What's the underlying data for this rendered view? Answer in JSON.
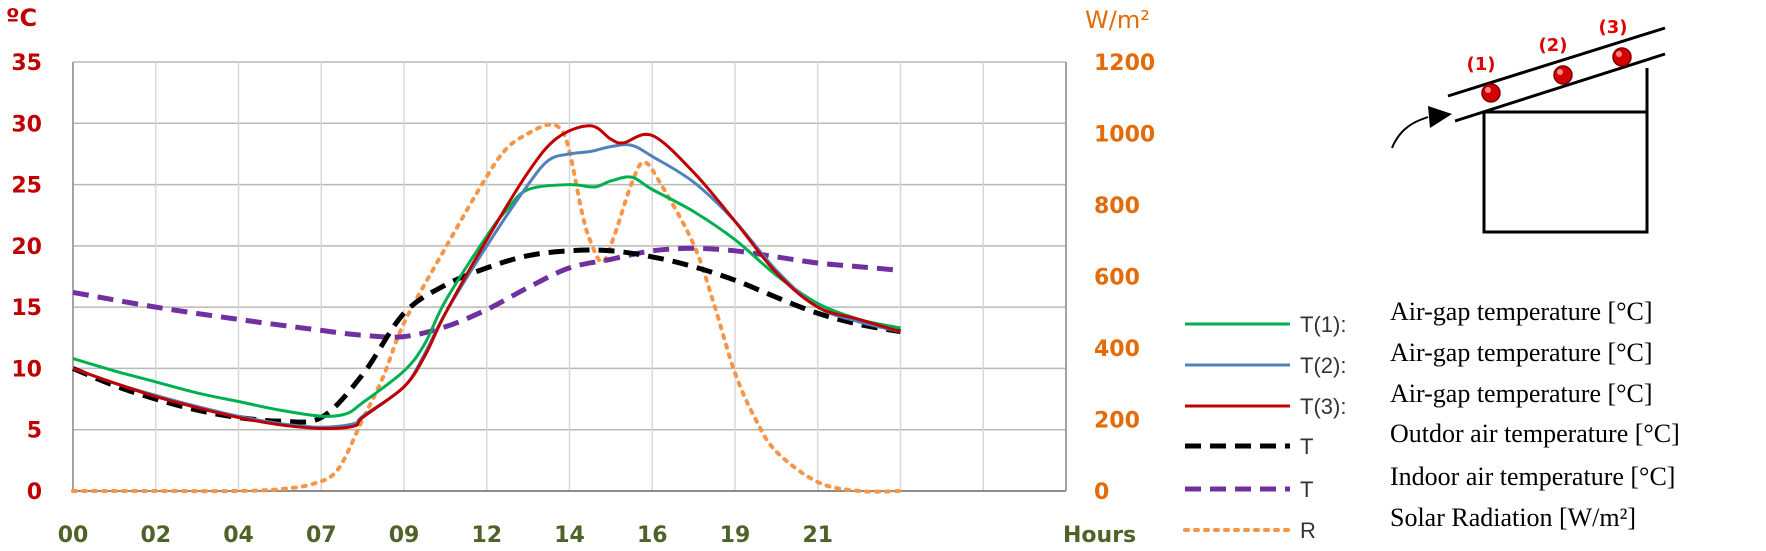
{
  "chart_data": {
    "type": "line",
    "y_left": {
      "unit_label": "ºC",
      "range": [
        0,
        35
      ],
      "ticks": [
        "0",
        "5",
        "10",
        "15",
        "20",
        "25",
        "30",
        "35"
      ],
      "color": "#c00000"
    },
    "y_right": {
      "unit_label": "W/m²",
      "range": [
        0,
        1200
      ],
      "ticks": [
        "0",
        "200",
        "400",
        "600",
        "800",
        "1000",
        "1200"
      ],
      "color": "#e36c09"
    },
    "x_axis": {
      "unit_label": "Hours",
      "range": [
        0,
        24
      ],
      "ticks": [
        {
          "label": "00",
          "value": 0
        },
        {
          "label": "02",
          "value": 2
        },
        {
          "label": "04",
          "value": 4
        },
        {
          "label": "07",
          "value": 6
        },
        {
          "label": "09",
          "value": 8
        },
        {
          "label": "12",
          "value": 10
        },
        {
          "label": "14",
          "value": 12
        },
        {
          "label": "16",
          "value": 14
        },
        {
          "label": "19",
          "value": 16
        },
        {
          "label": "21",
          "value": 18
        },
        {
          "label": "",
          "value": 20
        },
        {
          "label": "",
          "value": 22
        },
        {
          "label": "",
          "value": 24
        }
      ],
      "color": "#4f6228"
    },
    "grid": true,
    "legend_position": "bottom-right",
    "series": [
      {
        "symbol": "T(1):",
        "name": "Air-gap temperature [°C]",
        "axis": "left",
        "color": "#00b050",
        "dash": "solid",
        "points": [
          [
            0,
            10.8
          ],
          [
            1,
            9.8
          ],
          [
            2,
            8.9
          ],
          [
            3,
            8.0
          ],
          [
            4,
            7.3
          ],
          [
            5,
            6.6
          ],
          [
            6,
            6.1
          ],
          [
            6.6,
            6.3
          ],
          [
            7,
            7.2
          ],
          [
            8,
            9.8
          ],
          [
            8.5,
            12
          ],
          [
            9,
            15.5
          ],
          [
            10,
            20.8
          ],
          [
            10.5,
            23
          ],
          [
            11,
            24.6
          ],
          [
            12,
            25
          ],
          [
            12.6,
            24.8
          ],
          [
            13,
            25.3
          ],
          [
            13.5,
            25.6
          ],
          [
            14,
            24.6
          ],
          [
            15,
            22.8
          ],
          [
            16,
            20.5
          ],
          [
            17,
            17.6
          ],
          [
            18,
            15.3
          ],
          [
            19,
            14
          ],
          [
            20,
            13.3
          ]
        ]
      },
      {
        "symbol": "T(2):",
        "name": "Air-gap temperature [°C]",
        "axis": "left",
        "color": "#4f81bd",
        "dash": "solid",
        "points": [
          [
            0,
            10
          ],
          [
            1,
            8.8
          ],
          [
            2,
            7.8
          ],
          [
            3,
            6.9
          ],
          [
            4,
            6.1
          ],
          [
            5,
            5.5
          ],
          [
            6,
            5.2
          ],
          [
            6.8,
            5.5
          ],
          [
            7,
            6.1
          ],
          [
            8,
            8.5
          ],
          [
            8.5,
            11.2
          ],
          [
            9,
            14.5
          ],
          [
            10,
            20
          ],
          [
            11,
            25
          ],
          [
            11.5,
            27
          ],
          [
            12,
            27.5
          ],
          [
            12.5,
            27.7
          ],
          [
            13,
            28.1
          ],
          [
            13.5,
            28.2
          ],
          [
            14,
            27.3
          ],
          [
            15,
            25.2
          ],
          [
            16,
            22
          ],
          [
            17,
            18
          ],
          [
            18,
            15
          ],
          [
            19,
            13.8
          ],
          [
            20,
            13
          ]
        ]
      },
      {
        "symbol": "T(3):",
        "name": "Air-gap temperature [°C]",
        "axis": "left",
        "color": "#c00000",
        "dash": "solid",
        "points": [
          [
            0,
            10
          ],
          [
            1,
            8.8
          ],
          [
            2,
            7.7
          ],
          [
            3,
            6.8
          ],
          [
            4,
            6
          ],
          [
            5,
            5.4
          ],
          [
            6,
            5.1
          ],
          [
            6.8,
            5.3
          ],
          [
            7,
            6
          ],
          [
            8,
            8.5
          ],
          [
            8.5,
            11
          ],
          [
            9,
            14.5
          ],
          [
            10,
            20.5
          ],
          [
            11,
            26
          ],
          [
            11.7,
            28.8
          ],
          [
            12.5,
            29.8
          ],
          [
            13,
            28.7
          ],
          [
            13.3,
            28.4
          ],
          [
            14,
            29
          ],
          [
            15,
            26
          ],
          [
            16,
            22
          ],
          [
            17,
            17.8
          ],
          [
            18,
            15
          ],
          [
            19,
            14
          ],
          [
            20,
            13
          ]
        ]
      },
      {
        "symbol": "T",
        "name": "Outdor air temperature [°C]",
        "axis": "left",
        "color": "#000000",
        "dash": "dashed",
        "points": [
          [
            0,
            10
          ],
          [
            1,
            8.6
          ],
          [
            2,
            7.5
          ],
          [
            3,
            6.6
          ],
          [
            4,
            6
          ],
          [
            5,
            5.7
          ],
          [
            6,
            6
          ],
          [
            7,
            9.5
          ],
          [
            8,
            14.5
          ],
          [
            9,
            16.8
          ],
          [
            10,
            18.2
          ],
          [
            11,
            19.2
          ],
          [
            12,
            19.6
          ],
          [
            13,
            19.6
          ],
          [
            14,
            19.1
          ],
          [
            15,
            18.3
          ],
          [
            16,
            17.2
          ],
          [
            17,
            15.8
          ],
          [
            18,
            14.5
          ],
          [
            19,
            13.6
          ],
          [
            20,
            13
          ]
        ]
      },
      {
        "symbol": "T",
        "name": "Indoor air temperature [°C]",
        "axis": "left",
        "color": "#7030a0",
        "dash": "dashed",
        "points": [
          [
            0,
            16.2
          ],
          [
            2,
            15
          ],
          [
            4,
            14
          ],
          [
            6,
            13.1
          ],
          [
            7,
            12.7
          ],
          [
            8,
            12.6
          ],
          [
            9,
            13.4
          ],
          [
            10,
            14.8
          ],
          [
            11,
            16.6
          ],
          [
            12,
            18.2
          ],
          [
            13,
            18.9
          ],
          [
            14,
            19.6
          ],
          [
            15,
            19.8
          ],
          [
            16,
            19.6
          ],
          [
            17,
            19.1
          ],
          [
            18,
            18.6
          ],
          [
            19,
            18.3
          ],
          [
            20,
            18
          ]
        ]
      },
      {
        "symbol": "R",
        "name": "Solar Radiation [W/m²]",
        "axis": "right",
        "color": "#f79646",
        "dash": "dotted",
        "points": [
          [
            0,
            0
          ],
          [
            2,
            0
          ],
          [
            4,
            0
          ],
          [
            5,
            5
          ],
          [
            5.8,
            20
          ],
          [
            6.4,
            60
          ],
          [
            7,
            200
          ],
          [
            7.5,
            320
          ],
          [
            8,
            470
          ],
          [
            9,
            680
          ],
          [
            10,
            880
          ],
          [
            10.5,
            960
          ],
          [
            11,
            1000
          ],
          [
            11.5,
            1025
          ],
          [
            11.8,
            1010
          ],
          [
            12,
            950
          ],
          [
            12.3,
            780
          ],
          [
            12.5,
            700
          ],
          [
            12.8,
            640
          ],
          [
            13.1,
            720
          ],
          [
            13.5,
            860
          ],
          [
            13.8,
            920
          ],
          [
            14.2,
            860
          ],
          [
            15,
            690
          ],
          [
            15.5,
            520
          ],
          [
            16,
            330
          ],
          [
            16.5,
            200
          ],
          [
            17,
            110
          ],
          [
            18,
            25
          ],
          [
            19,
            0
          ],
          [
            20,
            0
          ]
        ]
      }
    ]
  },
  "diagram": {
    "markers": [
      "(1)",
      "(2)",
      "(3)"
    ]
  }
}
